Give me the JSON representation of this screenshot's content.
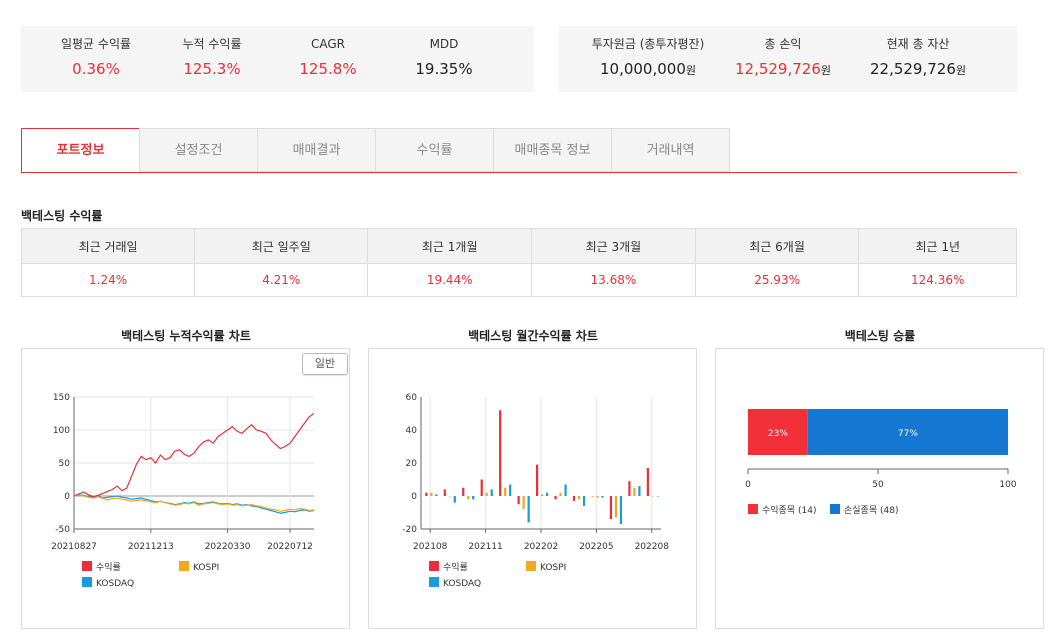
{
  "summary_left": [
    {
      "label": "일평균 수익률",
      "value": "0.36%",
      "red": true
    },
    {
      "label": "누적 수익률",
      "value": "125.3%",
      "red": true
    },
    {
      "label": "CAGR",
      "value": "125.8%",
      "red": true
    },
    {
      "label": "MDD",
      "value": "19.35%",
      "red": false
    }
  ],
  "summary_right": [
    {
      "label": "투자원금 (총투자평잔)",
      "value": "10,000,000",
      "unit": "원",
      "red": false
    },
    {
      "label": "총 손익",
      "value": "12,529,726",
      "unit": "원",
      "red": true
    },
    {
      "label": "현재 총 자산",
      "value": "22,529,726",
      "unit": "원",
      "red": false
    }
  ],
  "tabs": [
    "포트정보",
    "설정조건",
    "매매결과",
    "수익률",
    "매매종목 정보",
    "거래내역"
  ],
  "returns_section": {
    "title": "백테스팅 수익률",
    "headers": [
      "최근 거래일",
      "최근 일주일",
      "최근 1개월",
      "최근 3개월",
      "최근 6개월",
      "최근 1년"
    ],
    "values": [
      "1.24%",
      "4.21%",
      "19.44%",
      "13.68%",
      "25.93%",
      "124.36%"
    ]
  },
  "chart_titles": {
    "cumulative": "백테스팅 누적수익률 차트",
    "monthly": "백테스팅 월간수익률 차트",
    "winrate": "백테스팅 승률"
  },
  "cumulative_toggle": "일반",
  "colors": {
    "red": "#e8303a",
    "orange": "#f5a623",
    "blue": "#1a9ad6",
    "win": "#f1303a",
    "loss": "#1677d2"
  },
  "chart_data": [
    {
      "type": "line",
      "title": "백테스팅 누적수익률 차트",
      "ylim": [
        -50,
        150
      ],
      "yticks": [
        150,
        100,
        50,
        0,
        -50
      ],
      "xtick_labels": [
        "20210827",
        "20211213",
        "20220330",
        "20220712"
      ],
      "grid": true,
      "legend": "bottom",
      "series": [
        {
          "name": "수익률",
          "color": "red",
          "values": [
            0,
            3,
            6,
            2,
            -1,
            1,
            4,
            7,
            10,
            15,
            8,
            12,
            30,
            48,
            60,
            55,
            58,
            50,
            62,
            55,
            58,
            68,
            70,
            63,
            60,
            65,
            75,
            82,
            85,
            80,
            90,
            95,
            100,
            105,
            98,
            95,
            102,
            108,
            100,
            98,
            95,
            85,
            78,
            72,
            75,
            80,
            90,
            100,
            110,
            120,
            125
          ]
        },
        {
          "name": "KOSPI",
          "color": "orange",
          "values": [
            0,
            1,
            0,
            -2,
            -3,
            -1,
            -4,
            -6,
            -4,
            -3,
            -5,
            -6,
            -8,
            -7,
            -6,
            -7,
            -9,
            -10,
            -8,
            -10,
            -12,
            -14,
            -13,
            -11,
            -12,
            -10,
            -14,
            -12,
            -11,
            -10,
            -12,
            -13,
            -12,
            -14,
            -13,
            -15,
            -14,
            -13,
            -15,
            -16,
            -18,
            -20,
            -21,
            -23,
            -22,
            -20,
            -21,
            -19,
            -20,
            -22,
            -21
          ]
        },
        {
          "name": "KOSDAQ",
          "color": "blue",
          "values": [
            0,
            2,
            1,
            -1,
            -2,
            0,
            -3,
            -2,
            -1,
            0,
            -2,
            -3,
            -5,
            -4,
            -3,
            -5,
            -7,
            -9,
            -8,
            -10,
            -11,
            -13,
            -12,
            -10,
            -11,
            -9,
            -12,
            -11,
            -10,
            -9,
            -11,
            -12,
            -11,
            -13,
            -12,
            -14,
            -13,
            -15,
            -16,
            -18,
            -20,
            -22,
            -24,
            -26,
            -25,
            -23,
            -24,
            -22,
            -21,
            -23,
            -22
          ]
        }
      ]
    },
    {
      "type": "bar",
      "title": "백테스팅 월간수익률 차트",
      "ylim": [
        -20,
        60
      ],
      "yticks": [
        60,
        40,
        20,
        0,
        -20
      ],
      "categories": [
        "202108",
        "202109",
        "202110",
        "202111",
        "202112",
        "202201",
        "202202",
        "202203",
        "202204",
        "202205",
        "202206",
        "202207",
        "202208"
      ],
      "xtick_labels": [
        "202108",
        "202111",
        "202202",
        "202205",
        "202208"
      ],
      "legend": "bottom",
      "series": [
        {
          "name": "수익률",
          "color": "red",
          "values": [
            2,
            4,
            5,
            10,
            52,
            -5,
            19,
            -2,
            -3,
            0,
            -14,
            9,
            17
          ]
        },
        {
          "name": "KOSPI",
          "color": "orange",
          "values": [
            2,
            0,
            -2,
            2,
            5,
            -8,
            1,
            2,
            -2,
            -1,
            -13,
            5,
            0
          ]
        },
        {
          "name": "KOSDAQ",
          "color": "blue",
          "values": [
            1,
            -4,
            -2,
            4,
            7,
            -16,
            2,
            7,
            -6,
            -1,
            -17,
            6,
            0
          ]
        }
      ]
    },
    {
      "type": "bar",
      "orientation": "horizontal-stacked",
      "title": "백테스팅 승률",
      "xlim": [
        0,
        100
      ],
      "xticks": [
        0,
        50,
        100
      ],
      "legend": "bottom",
      "series": [
        {
          "name": "수익종목 (14)",
          "color": "win",
          "value": 23,
          "label": "23%"
        },
        {
          "name": "손실종목 (48)",
          "color": "loss",
          "value": 77,
          "label": "77%"
        }
      ]
    }
  ]
}
